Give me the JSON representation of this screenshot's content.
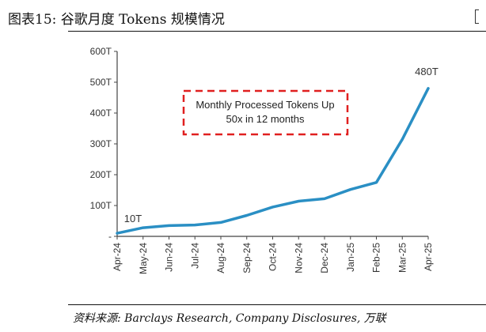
{
  "figure": {
    "title": "图表15:  谷歌月度 Tokens 规模情况",
    "source": "资料来源:  Barclays Research,  Company Disclosures,  万联"
  },
  "chart_data": {
    "type": "line",
    "categories": [
      "Apr-24",
      "May-24",
      "Jun-24",
      "Jul-24",
      "Aug-24",
      "Sep-24",
      "Oct-24",
      "Nov-24",
      "Dec-24",
      "Jan-25",
      "Feb-25",
      "Mar-25",
      "Apr-25"
    ],
    "values": [
      10,
      28,
      35,
      37,
      45,
      68,
      95,
      114,
      122,
      152,
      175,
      315,
      480
    ],
    "ylim": [
      0,
      600
    ],
    "y_ticks": [
      {
        "value": 0,
        "label": "-"
      },
      {
        "value": 100,
        "label": "100T"
      },
      {
        "value": 200,
        "label": "200T"
      },
      {
        "value": 300,
        "label": "300T"
      },
      {
        "value": 400,
        "label": "400T"
      },
      {
        "value": 500,
        "label": "500T"
      },
      {
        "value": 600,
        "label": "600T"
      }
    ],
    "data_labels": [
      {
        "index": 0,
        "text": "10T"
      },
      {
        "index": 12,
        "text": "480T"
      }
    ],
    "annotation": {
      "lines": [
        "Monthly Processed Tokens Up",
        "50x in 12 months"
      ],
      "border_color": "#e02020"
    },
    "line_color": "#2a8fc4",
    "grid": false
  }
}
